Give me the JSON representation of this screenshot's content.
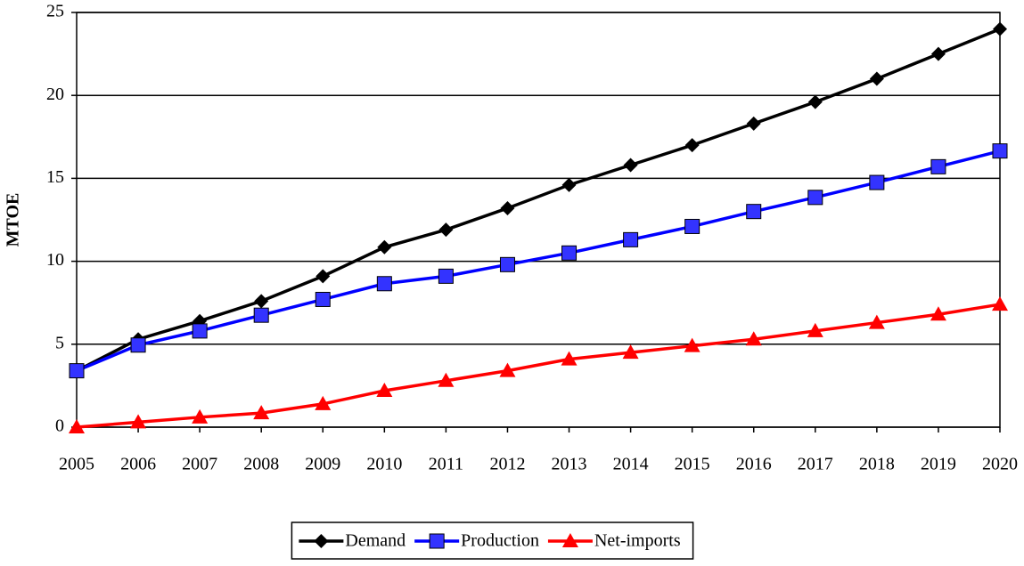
{
  "chart_data": {
    "type": "line",
    "ylabel": "MTOE",
    "categories": [
      "2005",
      "2006",
      "2007",
      "2008",
      "2009",
      "2010",
      "2011",
      "2012",
      "2013",
      "2014",
      "2015",
      "2016",
      "2017",
      "2018",
      "2019",
      "2020"
    ],
    "series": [
      {
        "name": "Demand",
        "color": "#000000",
        "marker": "diamond",
        "marker_color": "#000000",
        "values": [
          3.4,
          5.3,
          6.4,
          7.6,
          9.1,
          10.85,
          11.9,
          13.2,
          14.6,
          15.8,
          17.0,
          18.3,
          19.6,
          21.0,
          22.5,
          24.0
        ]
      },
      {
        "name": "Production",
        "color": "#0000ff",
        "marker": "square",
        "marker_color": "#3333ff",
        "values": [
          3.4,
          4.95,
          5.8,
          6.75,
          7.7,
          8.65,
          9.1,
          9.8,
          10.5,
          11.3,
          12.1,
          13.0,
          13.85,
          14.75,
          15.7,
          16.65
        ]
      },
      {
        "name": "Net-imports",
        "color": "#ff0000",
        "marker": "triangle",
        "marker_color": "#ff0000",
        "values": [
          0,
          0.3,
          0.6,
          0.85,
          1.4,
          2.2,
          2.8,
          3.4,
          4.1,
          4.5,
          4.9,
          5.3,
          5.8,
          6.3,
          6.8,
          7.4
        ]
      }
    ],
    "ylim": [
      0,
      25
    ],
    "yticks": [
      0,
      5,
      10,
      15,
      20,
      25
    ],
    "grid": true,
    "legend": "bottom"
  }
}
